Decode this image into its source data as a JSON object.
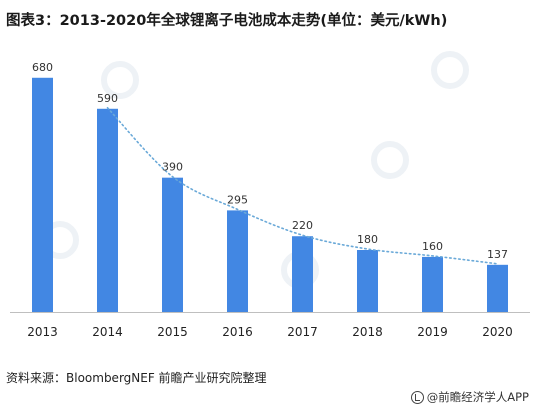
{
  "title": "图表3：2013-2020年全球锂离子电池成本走势(单位：美元/kWh)",
  "source": "资料来源：BloombergNEF 前瞻产业研究院整理",
  "brand": "@前瞻经济学人APP",
  "colors": {
    "bar": "#4287e3",
    "trend": "#6aa9d8",
    "axis": "#bfbfbf"
  },
  "chart_data": {
    "type": "bar",
    "title": "图表3：2013-2020年全球锂离子电池成本走势(单位：美元/kWh)",
    "categories": [
      "2013",
      "2014",
      "2015",
      "2016",
      "2017",
      "2018",
      "2019",
      "2020"
    ],
    "values": [
      680,
      590,
      390,
      295,
      220,
      180,
      160,
      137
    ],
    "ylim": [
      0,
      720
    ],
    "grid": false,
    "legend": "none",
    "trendline": {
      "type": "dotted",
      "from": "2014",
      "to": "2020"
    }
  }
}
